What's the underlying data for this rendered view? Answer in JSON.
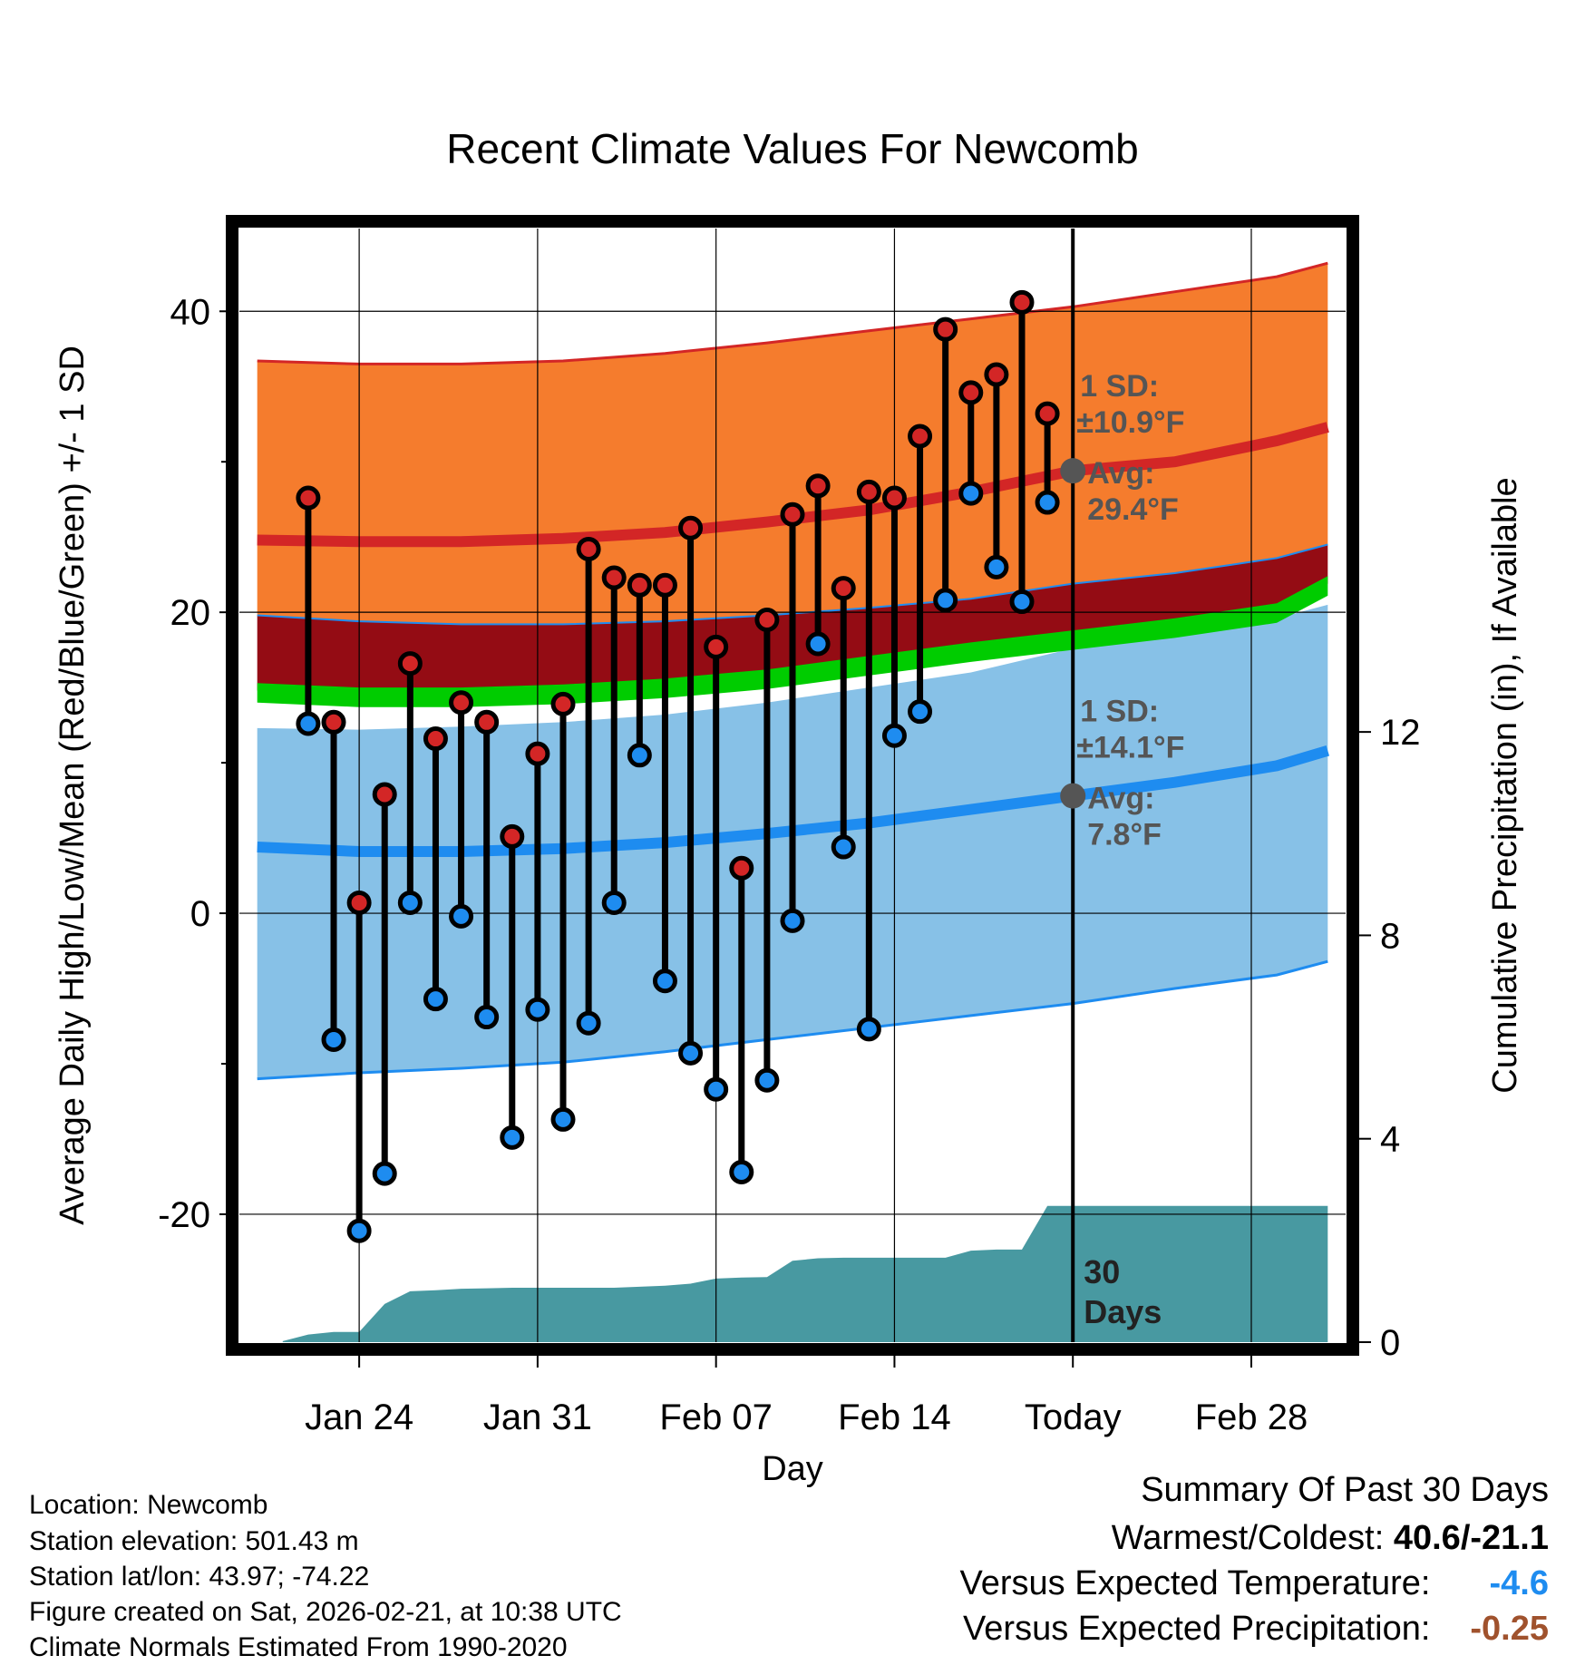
{
  "chart_data": {
    "type": "line",
    "title": "Recent Climate Values For Newcomb",
    "xlabel": "Day",
    "ylabel": "Average Daily High/Low/Mean (Red/Blue/Green) +/- 1 SD",
    "y2label": "Cumulative Precipitation (in), If Available",
    "ylim": [
      -28.5,
      45.5
    ],
    "y2lim": [
      0,
      21.9
    ],
    "xlim": [
      -32.7,
      10.7
    ],
    "yticks": [
      -20,
      0,
      20,
      40
    ],
    "y2ticks": [
      0,
      4,
      8,
      12
    ],
    "xticks": [
      {
        "day": -28,
        "label": "Jan 24"
      },
      {
        "day": -21,
        "label": "Jan 31"
      },
      {
        "day": -14,
        "label": "Feb 07"
      },
      {
        "day": -7,
        "label": "Feb 14"
      },
      {
        "day": 0,
        "label": "Today"
      },
      {
        "day": 7,
        "label": "Feb 28"
      }
    ],
    "today_day": 0,
    "days_label": [
      "30",
      "Days"
    ],
    "normals": {
      "x": [
        -32,
        -28,
        -24,
        -20,
        -16,
        -12,
        -8,
        -4,
        0,
        4,
        8,
        10
      ],
      "high_upper": [
        36.7,
        36.5,
        36.5,
        36.7,
        37.2,
        37.9,
        38.7,
        39.5,
        40.3,
        41.3,
        42.3,
        43.2
      ],
      "high_mean": [
        24.8,
        24.7,
        24.7,
        24.9,
        25.3,
        26.0,
        26.8,
        28.0,
        29.4,
        30.0,
        31.4,
        32.3
      ],
      "mean_upper": [
        19.8,
        19.4,
        19.2,
        19.2,
        19.4,
        19.8,
        20.3,
        20.9,
        21.9,
        22.6,
        23.6,
        24.5
      ],
      "mean_lower": [
        14.8,
        14.5,
        14.5,
        14.7,
        15.1,
        15.7,
        16.6,
        17.5,
        18.3,
        19.1,
        20.1,
        21.9
      ],
      "low_upper": [
        12.3,
        12.2,
        12.4,
        12.7,
        13.2,
        14.0,
        15.0,
        16.0,
        17.6,
        18.5,
        19.6,
        20.5
      ],
      "low_mean": [
        4.4,
        4.1,
        4.1,
        4.3,
        4.7,
        5.3,
        6.0,
        6.9,
        7.8,
        8.7,
        9.8,
        10.8
      ],
      "low_lower": [
        -11.0,
        -10.6,
        -10.3,
        -9.9,
        -9.2,
        -8.4,
        -7.6,
        -6.8,
        -6.0,
        -5.0,
        -4.1,
        -3.2
      ]
    },
    "annotations": [
      {
        "label_lines": [
          "1 SD:",
          "±10.9°F",
          "Avg:",
          "29.4°F"
        ],
        "sd": 10.9,
        "avg": 29.4,
        "series": "high"
      },
      {
        "label_lines": [
          "1 SD:",
          "±14.1°F",
          "Avg:",
          "7.8°F"
        ],
        "sd": 14.1,
        "avg": 7.8,
        "series": "low"
      }
    ],
    "daily": {
      "day": [
        -30,
        -29,
        -28,
        -27,
        -26,
        -25,
        -24,
        -23,
        -22,
        -21,
        -20,
        -19,
        -18,
        -17,
        -16,
        -15,
        -14,
        -13,
        -12,
        -11,
        -10,
        -9,
        -8,
        -7,
        -6,
        -5,
        -4,
        -3,
        -2,
        -1
      ],
      "high": [
        27.6,
        12.7,
        0.7,
        7.9,
        16.6,
        11.6,
        14.0,
        12.7,
        5.1,
        10.6,
        13.9,
        24.2,
        22.3,
        21.8,
        21.8,
        25.6,
        17.7,
        3.0,
        19.5,
        26.5,
        28.4,
        21.6,
        28.0,
        27.6,
        31.7,
        38.8,
        34.6,
        35.8,
        40.6,
        33.2
      ],
      "low": [
        12.6,
        -8.4,
        -21.1,
        -17.3,
        0.7,
        -5.7,
        -0.2,
        -6.9,
        -14.9,
        -6.4,
        -13.7,
        -7.3,
        0.7,
        10.5,
        -4.5,
        -9.3,
        -11.7,
        -17.2,
        -11.1,
        -0.5,
        17.9,
        4.4,
        -7.7,
        11.8,
        13.4,
        20.8,
        27.9,
        23.0,
        20.7,
        27.3
      ]
    },
    "precip": {
      "day": [
        -31,
        -30,
        -29,
        -28,
        -27,
        -26,
        -25,
        -24,
        -23,
        -22,
        -21,
        -20,
        -19,
        -18,
        -17,
        -16,
        -15,
        -14,
        -13,
        -12,
        -11,
        -10,
        -9,
        -8,
        -7,
        -6,
        -5,
        -4,
        -3,
        -2,
        -1,
        0,
        10
      ],
      "cum": [
        0.02,
        0.15,
        0.2,
        0.2,
        0.75,
        1.0,
        1.02,
        1.05,
        1.06,
        1.07,
        1.07,
        1.07,
        1.07,
        1.07,
        1.09,
        1.11,
        1.15,
        1.25,
        1.27,
        1.28,
        1.6,
        1.65,
        1.66,
        1.66,
        1.66,
        1.66,
        1.66,
        1.8,
        1.82,
        1.82,
        2.68,
        2.68,
        2.68
      ]
    },
    "colors": {
      "high_band": "#F57C2D",
      "high_line": "#D32626",
      "mean_band": "#940C14",
      "mean_line_green": "#00CC00",
      "low_band": "#87C1E7",
      "low_line": "#1E8CF0",
      "precip": "#4899A1",
      "marker_high": "#D32626",
      "marker_low": "#1E8CF0",
      "avg_dot": "#555555"
    }
  },
  "footer": {
    "location": "Location: Newcomb",
    "elevation": "Station elevation: 501.43 m",
    "latlon": "Station lat/lon: 43.97; -74.22",
    "created": "Figure created on Sat, 2026-02-21, at 10:38 UTC",
    "normals": "Climate Normals Estimated From 1990-2020"
  },
  "summary": {
    "title": "Summary Of Past 30 Days",
    "warmest_label": "Warmest/Coldest:",
    "warmest_value": "40.6/-21.1",
    "temp_label": "Versus Expected Temperature:",
    "temp_value": "-4.6",
    "temp_color": "#1E8CF0",
    "precip_label": "Versus Expected Precipitation:",
    "precip_value": "-0.25",
    "precip_color": "#A0522D"
  }
}
